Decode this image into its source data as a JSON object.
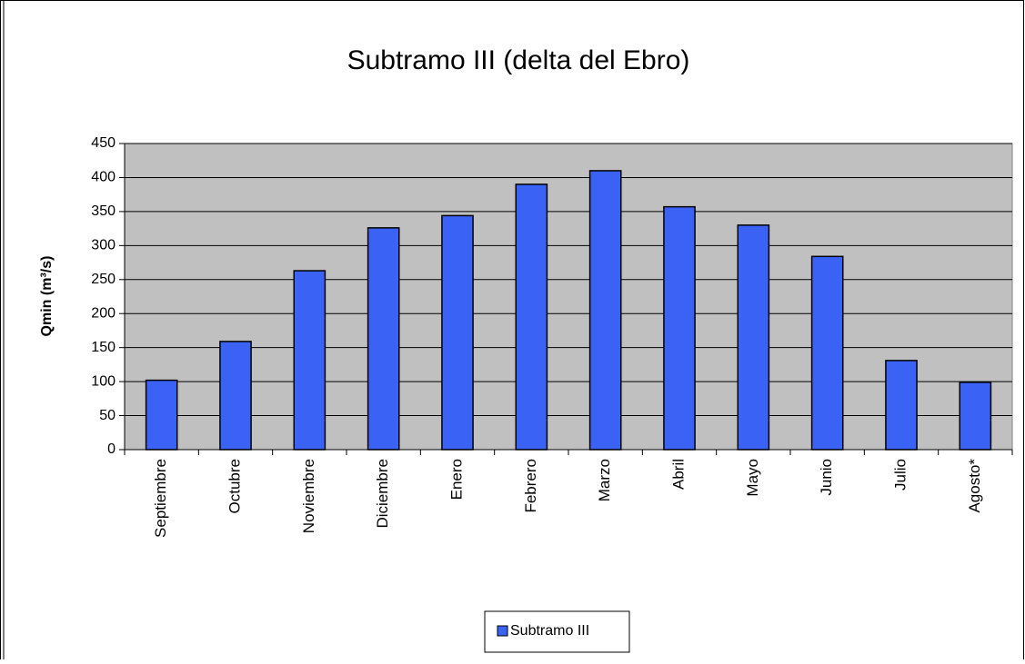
{
  "chart_data": {
    "type": "bar",
    "title": "Subtramo III (delta del Ebro)",
    "y_label": "Qmin (m³/s)",
    "categories": [
      "Septiembre",
      "Octubre",
      "Noviembre",
      "Diciembre",
      "Enero",
      "Febrero",
      "Marzo",
      "Abril",
      "Mayo",
      "Junio",
      "Julio",
      "Agosto*"
    ],
    "series": [
      {
        "name": "Subtramo III",
        "color": "#3a62f5",
        "values": [
          102,
          159,
          263,
          326,
          344,
          390,
          410,
          357,
          330,
          284,
          131,
          99
        ]
      }
    ],
    "ylim": [
      0,
      450
    ],
    "yticks": [
      0,
      50,
      100,
      150,
      200,
      250,
      300,
      350,
      400,
      450
    ],
    "grid": true,
    "legend": "bottom"
  }
}
